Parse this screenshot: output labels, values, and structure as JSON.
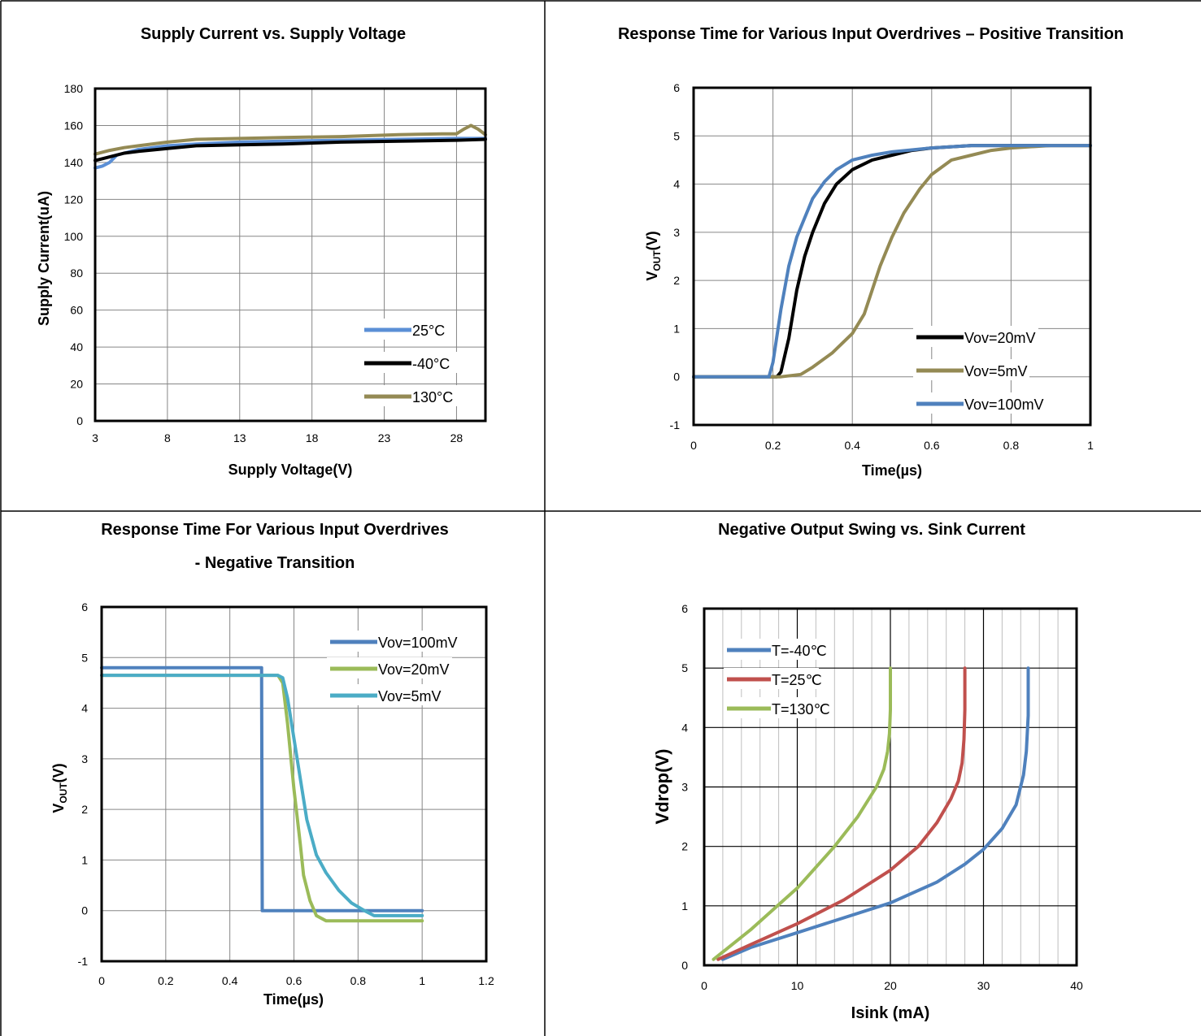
{
  "colors": {
    "blue": "#5b8fd6",
    "black": "#000000",
    "olive": "#948a54",
    "steel": "#4f81bd",
    "lime": "#9bbb59",
    "teal": "#4bacc6",
    "red": "#c0504d"
  },
  "chart_data": [
    {
      "type": "line",
      "title": "Supply Current vs. Supply Voltage",
      "xlabel": "Supply  Voltage(V)",
      "ylabel": "Supply  Current(uA)",
      "xlim": [
        3,
        30
      ],
      "ylim": [
        0,
        180
      ],
      "xticks": [
        "3",
        "8",
        "13",
        "18",
        "23",
        "28"
      ],
      "yticks": [
        "0",
        "20",
        "40",
        "60",
        "80",
        "100",
        "120",
        "140",
        "160",
        "180"
      ],
      "grid": true,
      "legend_position": "bottom-right",
      "series": [
        {
          "name": "25°C",
          "color": "#5b8fd6",
          "x": [
            3,
            3.5,
            4,
            4.5,
            5,
            6,
            8,
            10,
            13,
            16,
            20,
            24,
            28,
            30
          ],
          "y": [
            137,
            138,
            140,
            144,
            145,
            147,
            149,
            150,
            151,
            151.5,
            152,
            152.5,
            153,
            153
          ]
        },
        {
          "name": "-40°C",
          "color": "#000000",
          "x": [
            3,
            4,
            5,
            6,
            8,
            10,
            13,
            16,
            20,
            24,
            28,
            30
          ],
          "y": [
            141,
            143,
            145,
            146,
            147.5,
            149,
            149.5,
            150,
            151,
            151.5,
            152,
            152.5
          ]
        },
        {
          "name": "130°C",
          "color": "#948a54",
          "x": [
            3,
            4,
            5,
            6,
            8,
            10,
            13,
            16,
            20,
            24,
            27,
            28,
            28.5,
            29,
            29.5,
            30
          ],
          "y": [
            144.5,
            146.5,
            148,
            149,
            151,
            152.5,
            153,
            153.5,
            154,
            155,
            155.5,
            155.5,
            158,
            160,
            158,
            155
          ]
        }
      ]
    },
    {
      "type": "line",
      "title": "Response Time for Various Input Overdrives – Positive Transition",
      "xlabel": "Time(µs)",
      "ylabel": "VOUT(V)",
      "xlim": [
        0,
        1
      ],
      "ylim": [
        -1,
        6
      ],
      "xticks": [
        "0",
        "0.2",
        "0.4",
        "0.6",
        "0.8",
        "1"
      ],
      "yticks": [
        "-1",
        "0",
        "1",
        "2",
        "3",
        "4",
        "5",
        "6"
      ],
      "grid": true,
      "legend_position": "bottom-right",
      "series": [
        {
          "name": "Vov=20mV",
          "color": "#000000",
          "x": [
            0,
            0.21,
            0.22,
            0.24,
            0.26,
            0.28,
            0.3,
            0.33,
            0.36,
            0.4,
            0.45,
            0.5,
            0.55,
            0.6,
            0.7,
            0.8,
            0.9,
            1
          ],
          "y": [
            0,
            0,
            0.1,
            0.8,
            1.8,
            2.5,
            3.0,
            3.6,
            4.0,
            4.3,
            4.5,
            4.6,
            4.7,
            4.75,
            4.8,
            4.8,
            4.8,
            4.8
          ]
        },
        {
          "name": "Vov=5mV",
          "color": "#948a54",
          "x": [
            0,
            0.22,
            0.27,
            0.3,
            0.35,
            0.4,
            0.43,
            0.45,
            0.47,
            0.5,
            0.53,
            0.57,
            0.6,
            0.65,
            0.7,
            0.75,
            0.8,
            0.9,
            1
          ],
          "y": [
            0,
            0,
            0.05,
            0.2,
            0.5,
            0.9,
            1.3,
            1.8,
            2.3,
            2.9,
            3.4,
            3.9,
            4.2,
            4.5,
            4.6,
            4.7,
            4.75,
            4.8,
            4.8
          ]
        },
        {
          "name": "Vov=100mV",
          "color": "#4f81bd",
          "x": [
            0,
            0.19,
            0.2,
            0.22,
            0.24,
            0.26,
            0.28,
            0.3,
            0.33,
            0.36,
            0.4,
            0.45,
            0.5,
            0.6,
            0.7,
            0.8,
            0.9,
            1
          ],
          "y": [
            0,
            0,
            0.3,
            1.4,
            2.3,
            2.9,
            3.3,
            3.7,
            4.05,
            4.3,
            4.5,
            4.6,
            4.67,
            4.75,
            4.8,
            4.8,
            4.8,
            4.8
          ]
        }
      ]
    },
    {
      "type": "line",
      "title": "Response Time For Various Input Overdrives",
      "subtitle": "- Negative Transition",
      "xlabel": "Time(µs)",
      "ylabel": "VOUT(V)",
      "xlim": [
        0,
        1.2
      ],
      "ylim": [
        -1,
        6
      ],
      "xticks": [
        "0",
        "0.2",
        "0.4",
        "0.6",
        "0.8",
        "1",
        "1.2"
      ],
      "yticks": [
        "-1",
        "0",
        "1",
        "2",
        "3",
        "4",
        "5",
        "6"
      ],
      "grid": true,
      "legend_position": "top-right",
      "series": [
        {
          "name": "Vov=100mV",
          "color": "#4f81bd",
          "x": [
            0,
            0.499,
            0.5,
            0.501,
            1
          ],
          "y": [
            4.8,
            4.8,
            2.5,
            0,
            0
          ]
        },
        {
          "name": "Vov=20mV",
          "color": "#9bbb59",
          "x": [
            0,
            0.55,
            0.565,
            0.58,
            0.6,
            0.62,
            0.63,
            0.65,
            0.67,
            0.7,
            1
          ],
          "y": [
            4.65,
            4.65,
            4.5,
            3.7,
            2.4,
            1.3,
            0.7,
            0.2,
            -0.1,
            -0.2,
            -0.2
          ]
        },
        {
          "name": "Vov=5mV",
          "color": "#4bacc6",
          "x": [
            0,
            0.55,
            0.565,
            0.58,
            0.6,
            0.62,
            0.64,
            0.67,
            0.7,
            0.74,
            0.78,
            0.82,
            0.85,
            1
          ],
          "y": [
            4.65,
            4.65,
            4.6,
            4.2,
            3.4,
            2.6,
            1.8,
            1.1,
            0.75,
            0.4,
            0.15,
            0,
            -0.1,
            -0.1
          ]
        }
      ]
    },
    {
      "type": "line",
      "title": "Negative Output Swing vs. Sink Current",
      "xlabel": "Isink (mA)",
      "ylabel": "Vdrop(V)",
      "xlim": [
        0,
        40
      ],
      "ylim": [
        0,
        6
      ],
      "xticks": [
        "0",
        "10",
        "20",
        "30",
        "40"
      ],
      "yticks": [
        "0",
        "1",
        "2",
        "3",
        "4",
        "5",
        "6"
      ],
      "grid": true,
      "legend_position": "top-left",
      "series": [
        {
          "name": "T=-40℃",
          "color": "#4f81bd",
          "x": [
            2,
            5,
            10,
            15,
            20,
            25,
            28,
            30,
            32,
            33.5,
            34.3,
            34.6,
            34.8,
            34.8
          ],
          "y": [
            0.1,
            0.3,
            0.55,
            0.8,
            1.05,
            1.4,
            1.7,
            1.95,
            2.3,
            2.7,
            3.2,
            3.6,
            4.2,
            5.0
          ]
        },
        {
          "name": "T=25℃",
          "color": "#c0504d",
          "x": [
            1.5,
            5,
            10,
            15,
            20,
            23,
            25,
            26.5,
            27.3,
            27.7,
            27.9,
            28,
            28
          ],
          "y": [
            0.1,
            0.35,
            0.7,
            1.1,
            1.6,
            2.0,
            2.4,
            2.8,
            3.1,
            3.4,
            3.8,
            4.3,
            5.0
          ]
        },
        {
          "name": "T=130℃",
          "color": "#9bbb59",
          "x": [
            1,
            5,
            10,
            14,
            16.5,
            18.5,
            19.3,
            19.7,
            19.9,
            20,
            20
          ],
          "y": [
            0.1,
            0.6,
            1.3,
            2.0,
            2.5,
            3.0,
            3.3,
            3.6,
            3.9,
            4.3,
            5.0
          ]
        }
      ]
    }
  ]
}
